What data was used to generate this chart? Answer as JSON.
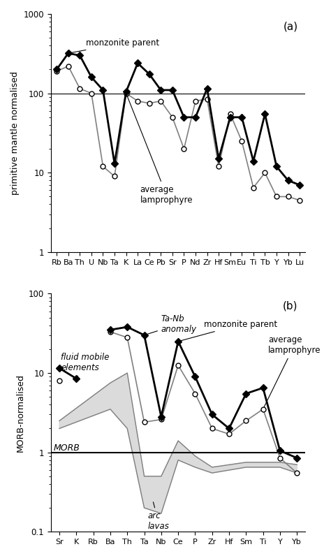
{
  "panel_a": {
    "elements": [
      "Rb",
      "Ba",
      "Th",
      "U",
      "Nb",
      "Ta",
      "K",
      "La",
      "Ce",
      "Pb",
      "Sr",
      "P",
      "Nd",
      "Zr",
      "Hf",
      "Sm",
      "Eu",
      "Ti",
      "Tb",
      "Y",
      "Yb",
      "Lu"
    ],
    "ylabel": "primitive mantle normalised",
    "ylim": [
      1.0,
      1000.0
    ],
    "label": "(a)",
    "monzonite": [
      200,
      320,
      300,
      160,
      110,
      13,
      105,
      240,
      175,
      110,
      110,
      50,
      50,
      115,
      15,
      50,
      50,
      14,
      55,
      12,
      8,
      7
    ],
    "lamprophyre": [
      190,
      220,
      115,
      100,
      12,
      9,
      100,
      80,
      75,
      80,
      50,
      20,
      80,
      85,
      12,
      55,
      25,
      6.5,
      10,
      5,
      5,
      4.5
    ],
    "monzonite_label": "monzonite parent",
    "lamprophyre_label": "average\nlamprophyre"
  },
  "panel_b": {
    "elements": [
      "Sr",
      "K",
      "Rb",
      "Ba",
      "Th",
      "Ta",
      "Nb",
      "Ce",
      "P",
      "Zr",
      "Hf",
      "Sm",
      "Ti",
      "Y",
      "Yb"
    ],
    "ylabel": "MORB-normalised",
    "ylim": [
      0.1,
      100.0
    ],
    "label": "(b)",
    "monzonite": [
      11.5,
      8.5,
      null,
      35,
      38,
      30,
      2.8,
      25,
      9.0,
      3.0,
      2.0,
      5.5,
      6.5,
      1.05,
      0.85
    ],
    "lamprophyre": [
      8.0,
      null,
      null,
      33,
      28,
      2.4,
      2.6,
      12.5,
      5.5,
      2.0,
      1.7,
      2.5,
      3.5,
      0.85,
      0.55
    ],
    "arc_x_idx": [
      0,
      3,
      4,
      5,
      6,
      7,
      8,
      9,
      11,
      13,
      14
    ],
    "arc_upper_y": [
      2.5,
      7.5,
      10.0,
      0.5,
      0.5,
      1.4,
      0.9,
      0.65,
      0.75,
      0.75,
      0.7
    ],
    "arc_lower_y": [
      2.0,
      3.5,
      2.0,
      0.2,
      0.17,
      0.8,
      0.65,
      0.55,
      0.65,
      0.65,
      0.55
    ],
    "morb_label": "MORB",
    "monzonite_label": "monzonite parent",
    "lamprophyre_label": "average\nlamprophyre",
    "ta_nb_label": "Ta-Nb\nanomaly",
    "fluid_label": "fluid mobile\nelements",
    "arc_label": "arc\nlavas"
  },
  "fig_width": 4.74,
  "fig_height": 7.96,
  "dpi": 100
}
